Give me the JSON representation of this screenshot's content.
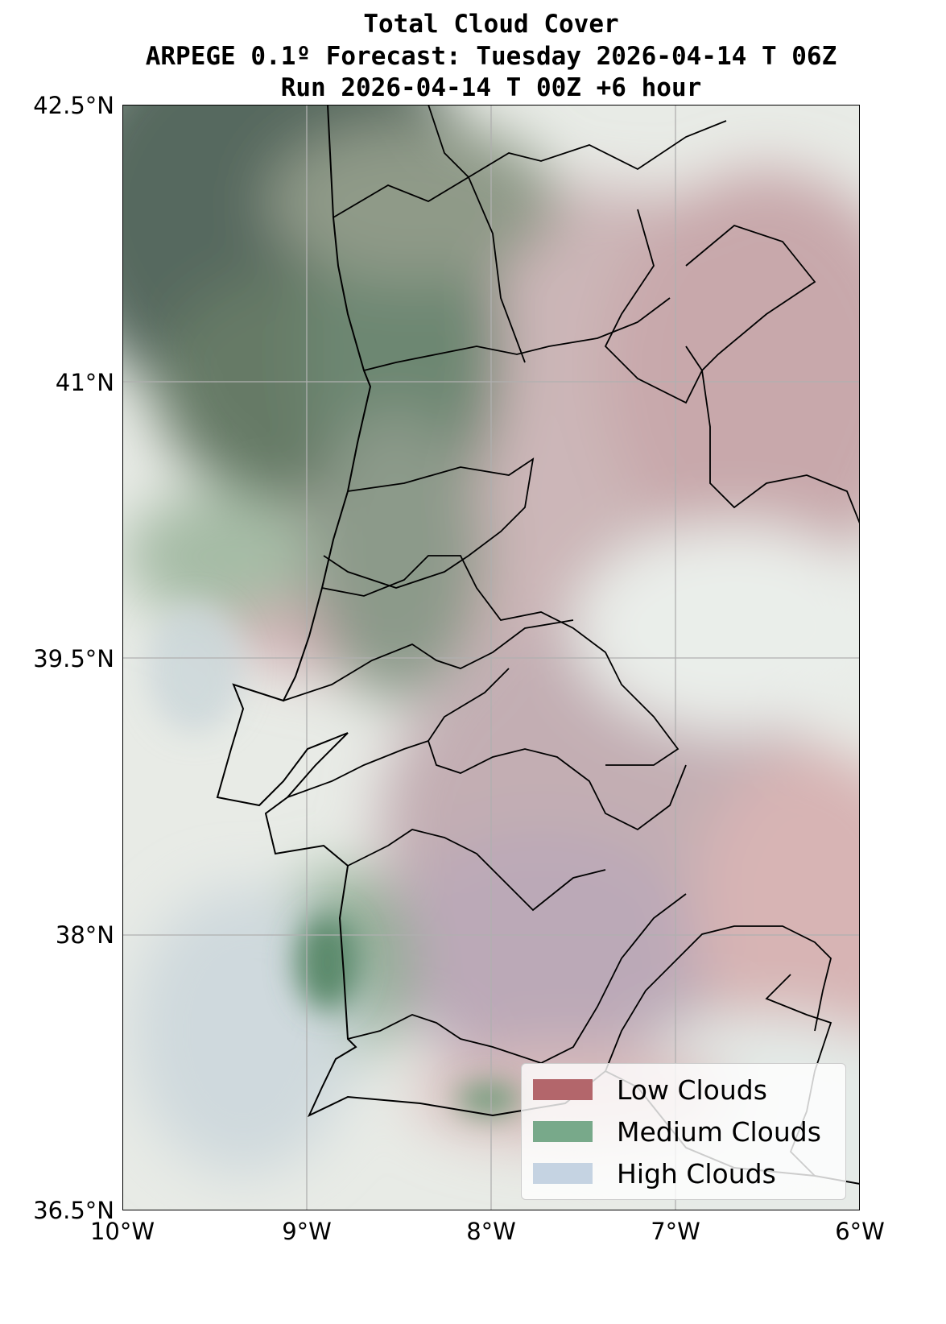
{
  "title": {
    "line1": "Total Cloud Cover",
    "line2": "ARPEGE 0.1º Forecast: Tuesday 2026-04-14 T 06Z",
    "line3": "Run 2026-04-14 T 00Z +6 hour"
  },
  "axes": {
    "y_ticks": [
      "42.5°N",
      "41°N",
      "39.5°N",
      "38°N",
      "36.5°N"
    ],
    "x_ticks": [
      "10°W",
      "9°W",
      "8°W",
      "7°W",
      "6°W"
    ],
    "lon_range": [
      -10,
      -6
    ],
    "lat_range": [
      36.5,
      42.5
    ]
  },
  "legend": {
    "items": [
      {
        "label": "Low Clouds",
        "color": "#b3666b"
      },
      {
        "label": "Medium Clouds",
        "color": "#78a98a"
      },
      {
        "label": "High Clouds",
        "color": "#c5d3e2"
      }
    ]
  }
}
